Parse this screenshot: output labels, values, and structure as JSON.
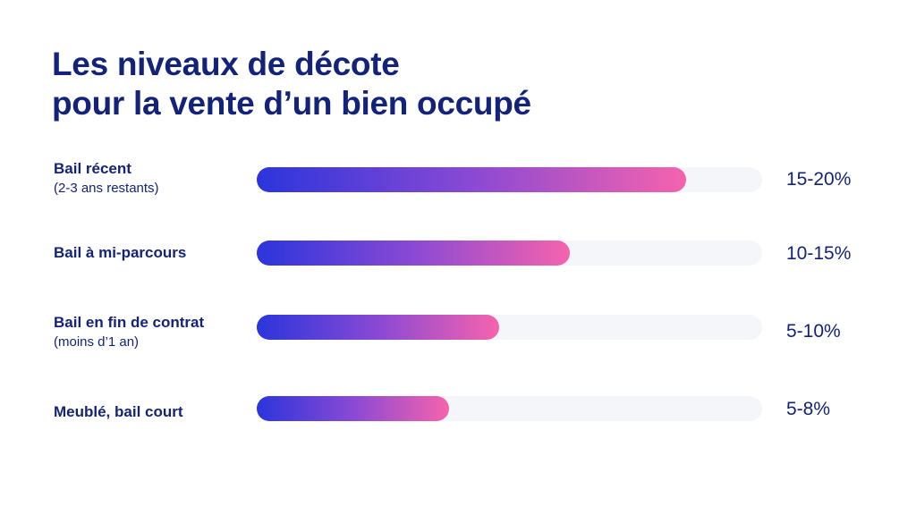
{
  "chart_data": {
    "type": "bar",
    "orientation": "horizontal",
    "title_lines": [
      "Les niveaux de décote",
      "pour la vente d’un bien occupé"
    ],
    "xlim": [
      0,
      100
    ],
    "grid": false,
    "legend": "none",
    "categories": [
      {
        "label": "Bail récent",
        "sublabel": "(2-3 ans restants)",
        "value_label": "15-20%"
      },
      {
        "label": "Bail à mi-parcours",
        "sublabel": "",
        "value_label": "10-15%"
      },
      {
        "label": "Bail en fin de contrat",
        "sublabel": "(moins d’1 an)",
        "value_label": "5-10%"
      },
      {
        "label": "Meublé, bail court",
        "sublabel": "",
        "value_label": "5-8%"
      }
    ],
    "values": [
      85,
      62,
      48,
      38
    ],
    "colors": {
      "gradient_start": "#2b35dc",
      "gradient_mid": "#8a49d4",
      "gradient_end": "#f663ad",
      "track": "#f5f6fa",
      "text": "#14237a"
    }
  }
}
